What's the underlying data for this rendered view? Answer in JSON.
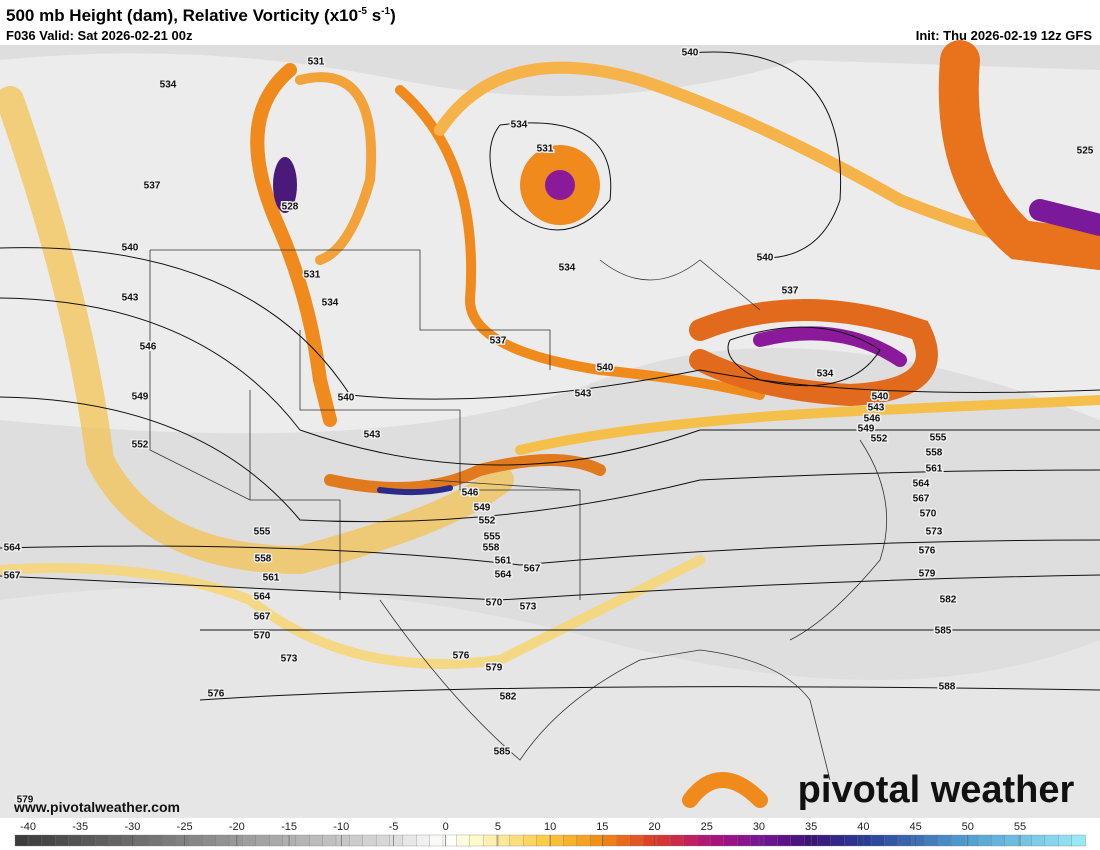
{
  "header": {
    "title": "500 mb Height (dam), Relative Vorticity (x10",
    "title_exp": "-5",
    "title_mid": " s",
    "title_exp2": "-1",
    "title_end": ")",
    "valid": "F036 Valid: Sat 2026-02-21 00z",
    "init": "Init: Thu 2026-02-19 12z GFS"
  },
  "map": {
    "contour_labels": [
      534,
      537,
      540,
      543,
      546,
      549,
      552,
      564,
      567,
      531,
      528,
      531,
      534,
      540,
      543,
      537,
      534,
      531,
      534,
      540,
      540,
      537,
      540,
      543,
      534,
      540,
      543,
      546,
      549,
      552,
      555,
      558,
      561,
      564,
      567,
      570,
      573,
      576,
      579,
      582,
      585,
      588,
      525,
      546,
      549,
      552,
      555,
      558,
      561,
      564,
      567,
      570,
      573,
      576,
      579,
      582,
      585,
      555,
      558,
      561,
      564,
      567,
      570,
      573,
      576,
      579
    ],
    "watermark": "pivotal weather",
    "site": "www.pivotalweather.com"
  },
  "colorbar": {
    "ticks": [
      -40,
      -35,
      -30,
      -25,
      -20,
      -15,
      -10,
      -5,
      0,
      5,
      10,
      15,
      20,
      25,
      30,
      35,
      40,
      45,
      50,
      55
    ]
  }
}
